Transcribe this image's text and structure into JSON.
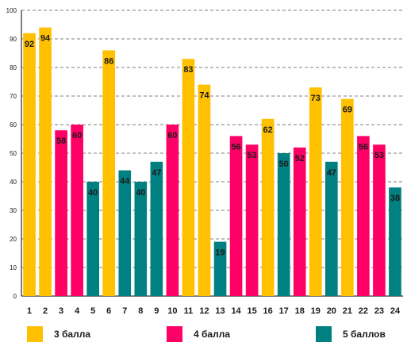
{
  "colors": {
    "three": "#FFC000",
    "four": "#FF0066",
    "five": "#008080",
    "grid": "#7F7F7F",
    "axis": "#000000",
    "text": "#1a1a1a"
  },
  "legend": {
    "items": [
      {
        "label": "3 балла",
        "color": "#FFC000"
      },
      {
        "label": "4 балла",
        "color": "#FF0066"
      },
      {
        "label": "5 баллов",
        "color": "#008080"
      }
    ]
  },
  "chart_data": {
    "type": "bar",
    "title": "",
    "xlabel": "",
    "ylabel": "",
    "ylim": [
      0,
      100
    ],
    "yticks": [
      0,
      10,
      20,
      30,
      40,
      50,
      60,
      70,
      80,
      90,
      100
    ],
    "grid": true,
    "legend_position": "bottom",
    "categories": [
      "1",
      "2",
      "3",
      "4",
      "5",
      "6",
      "7",
      "8",
      "9",
      "10",
      "11",
      "12",
      "13",
      "14",
      "15",
      "16",
      "17",
      "18",
      "19",
      "20",
      "21",
      "22",
      "23",
      "24"
    ],
    "values": [
      92,
      94,
      58,
      60,
      40,
      86,
      44,
      40,
      47,
      60,
      83,
      74,
      19,
      56,
      53,
      62,
      50,
      52,
      73,
      47,
      69,
      56,
      53,
      38
    ],
    "groups": [
      "3 балла",
      "3 балла",
      "4 балла",
      "4 балла",
      "5 баллов",
      "3 балла",
      "5 баллов",
      "5 баллов",
      "5 баллов",
      "4 балла",
      "3 балла",
      "3 балла",
      "5 баллов",
      "4 балла",
      "4 балла",
      "3 балла",
      "5 баллов",
      "4 балла",
      "3 балла",
      "5 баллов",
      "3 балла",
      "4 балла",
      "4 балла",
      "5 баллов"
    ],
    "data_labels": [
      "92",
      "94",
      "58",
      "60",
      "40",
      "86",
      "44",
      "40",
      "47",
      "60",
      "83",
      "74",
      "19",
      "56",
      "53",
      "62",
      "50",
      "52",
      "73",
      "47",
      "69",
      "56",
      "53",
      "38"
    ]
  }
}
